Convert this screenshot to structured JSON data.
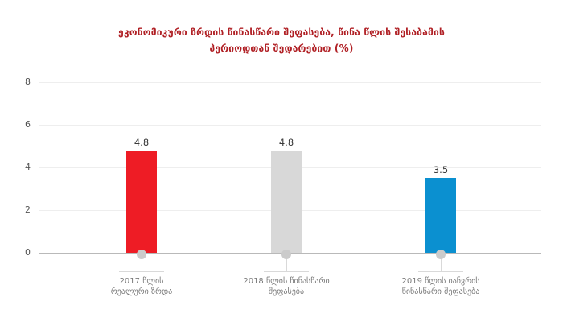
{
  "title": {
    "line1": "ეკონომიკური ზრდის წინასწარი შეფასება, წინა წლის შესაბამის",
    "line2": "პერიოდთან შედარებით (%)"
  },
  "y_axis": {
    "ticks": [
      "8",
      "6",
      "4",
      "2",
      "0"
    ]
  },
  "chart_data": {
    "type": "bar",
    "title": "ეკონომიკური ზრდის წინასწარი შეფასება, წინა წლის შესაბამის პერიოდთან შედარებით (%)",
    "categories": [
      "2017 წლის რეალური ზრდა",
      "2018 წლის წინასწარი შეფასება",
      "2019 წლის იანვრის წინასწარი შეფასება"
    ],
    "values": [
      4.8,
      4.8,
      3.5
    ],
    "bar_colors": [
      "#ee1c25",
      "#d8d8d8",
      "#0b90d0"
    ],
    "xlabel": "",
    "ylabel": "",
    "ylim": [
      0,
      8
    ],
    "yticks": [
      0,
      2,
      4,
      6,
      8
    ],
    "grid": true,
    "legend": false
  },
  "bars": [
    {
      "value_label": "4.8",
      "label_line1": "2017 წლის",
      "label_line2": "რეალური ზრდა",
      "color": "#ee1c25"
    },
    {
      "value_label": "4.8",
      "label_line1": "2018 წლის წინასწარი",
      "label_line2": "შეფასება",
      "color": "#d8d8d8"
    },
    {
      "value_label": "3.5",
      "label_line1": "2019 წლის იანვრის",
      "label_line2": "წინასწარი შეფასება",
      "color": "#0b90d0"
    }
  ],
  "colors": {
    "title_text": "#b01f24",
    "value_label": "#3a3a3a",
    "category_label": "#7b7b7b",
    "tick_label": "#555555",
    "marker": "#cbcbcb",
    "gridline": "#eeeeee",
    "axis_line": "#b9b9b9"
  }
}
